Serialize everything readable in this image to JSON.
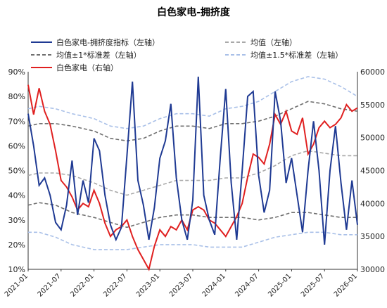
{
  "chart_data": {
    "type": "line",
    "title": "白色家电-拥挤度",
    "legend_position": "top",
    "grid": false,
    "x_ticks": [
      "2021-01",
      "2021-07",
      "2022-01",
      "2022-07",
      "2023-01",
      "2023-07",
      "2024-01",
      "2024-07",
      "2025-01",
      "2025-07",
      "2026-01"
    ],
    "x_range": [
      "2021-01",
      "2026-01"
    ],
    "y_left": {
      "min": 10,
      "max": 90,
      "step": 10,
      "unit": "%",
      "tick_labels": [
        "10%",
        "20%",
        "30%",
        "40%",
        "50%",
        "60%",
        "70%",
        "80%",
        "90%"
      ]
    },
    "y_right": {
      "min": 30000,
      "max": 60000,
      "step": 5000,
      "tick_labels": [
        "30000",
        "35000",
        "40000",
        "45000",
        "50000",
        "55000",
        "60000"
      ]
    },
    "series": [
      {
        "name": "白色家电-拥挤度指标（左轴）",
        "axis": "left",
        "color": "#1f3a93",
        "style": "solid",
        "points": [
          [
            "2021-01",
            73
          ],
          [
            "2021-02",
            60
          ],
          [
            "2021-03",
            44
          ],
          [
            "2021-04",
            47
          ],
          [
            "2021-05",
            40
          ],
          [
            "2021-06",
            29
          ],
          [
            "2021-07",
            26
          ],
          [
            "2021-08",
            36
          ],
          [
            "2021-09",
            54
          ],
          [
            "2021-10",
            32
          ],
          [
            "2021-11",
            46
          ],
          [
            "2021-12",
            37
          ],
          [
            "2022-01",
            63
          ],
          [
            "2022-02",
            58
          ],
          [
            "2022-03",
            40
          ],
          [
            "2022-04",
            28
          ],
          [
            "2022-05",
            22
          ],
          [
            "2022-06",
            27
          ],
          [
            "2022-07",
            56
          ],
          [
            "2022-08",
            86
          ],
          [
            "2022-09",
            46
          ],
          [
            "2022-10",
            36
          ],
          [
            "2022-11",
            22
          ],
          [
            "2022-12",
            35
          ],
          [
            "2023-01",
            55
          ],
          [
            "2023-02",
            62
          ],
          [
            "2023-03",
            77
          ],
          [
            "2023-04",
            47
          ],
          [
            "2023-05",
            30
          ],
          [
            "2023-06",
            22
          ],
          [
            "2023-07",
            38
          ],
          [
            "2023-08",
            88
          ],
          [
            "2023-09",
            40
          ],
          [
            "2023-10",
            30
          ],
          [
            "2023-11",
            24
          ],
          [
            "2023-12",
            55
          ],
          [
            "2024-01",
            83
          ],
          [
            "2024-02",
            45
          ],
          [
            "2024-03",
            22
          ],
          [
            "2024-04",
            50
          ],
          [
            "2024-05",
            80
          ],
          [
            "2024-06",
            82
          ],
          [
            "2024-07",
            48
          ],
          [
            "2024-08",
            33
          ],
          [
            "2024-09",
            42
          ],
          [
            "2024-10",
            82
          ],
          [
            "2024-11",
            70
          ],
          [
            "2024-12",
            45
          ],
          [
            "2025-01",
            55
          ],
          [
            "2025-02",
            40
          ],
          [
            "2025-03",
            25
          ],
          [
            "2025-04",
            50
          ],
          [
            "2025-05",
            70
          ],
          [
            "2025-06",
            50
          ],
          [
            "2025-07",
            20
          ],
          [
            "2025-08",
            50
          ],
          [
            "2025-09",
            68
          ],
          [
            "2025-10",
            45
          ],
          [
            "2025-11",
            26
          ],
          [
            "2025-12",
            46
          ],
          [
            "2026-01",
            28
          ]
        ]
      },
      {
        "name": "均值（左轴）",
        "axis": "left",
        "color": "#a9a9a9",
        "style": "dashed",
        "points": [
          [
            "2021-01",
            48
          ],
          [
            "2021-03",
            49
          ],
          [
            "2021-06",
            49
          ],
          [
            "2021-09",
            48
          ],
          [
            "2022-01",
            45
          ],
          [
            "2022-04",
            42
          ],
          [
            "2022-07",
            40
          ],
          [
            "2022-10",
            42
          ],
          [
            "2023-01",
            44
          ],
          [
            "2023-04",
            46
          ],
          [
            "2023-07",
            46
          ],
          [
            "2023-10",
            46
          ],
          [
            "2024-01",
            47
          ],
          [
            "2024-04",
            47
          ],
          [
            "2024-07",
            49
          ],
          [
            "2024-10",
            52
          ],
          [
            "2025-01",
            56
          ],
          [
            "2025-04",
            58
          ],
          [
            "2025-07",
            57
          ],
          [
            "2025-10",
            56
          ],
          [
            "2026-01",
            56
          ]
        ]
      },
      {
        "name": "均值±1*标准差（左轴）",
        "axis": "left",
        "color": "#707070",
        "style": "dashed",
        "bands": [
          [
            [
              "2021-01",
              68
            ],
            [
              "2021-03",
              69
            ],
            [
              "2021-06",
              69
            ],
            [
              "2021-09",
              68
            ],
            [
              "2022-01",
              66
            ],
            [
              "2022-04",
              63
            ],
            [
              "2022-07",
              62
            ],
            [
              "2022-10",
              63
            ],
            [
              "2023-01",
              66
            ],
            [
              "2023-04",
              68
            ],
            [
              "2023-07",
              68
            ],
            [
              "2023-10",
              67
            ],
            [
              "2024-01",
              69
            ],
            [
              "2024-04",
              69
            ],
            [
              "2024-07",
              70
            ],
            [
              "2024-10",
              72
            ],
            [
              "2025-01",
              75
            ],
            [
              "2025-04",
              78
            ],
            [
              "2025-07",
              77
            ],
            [
              "2025-10",
              75
            ],
            [
              "2026-01",
              74
            ]
          ],
          [
            [
              "2021-01",
              36
            ],
            [
              "2021-03",
              37
            ],
            [
              "2021-06",
              36
            ],
            [
              "2021-09",
              33
            ],
            [
              "2022-01",
              31
            ],
            [
              "2022-04",
              29
            ],
            [
              "2022-07",
              27
            ],
            [
              "2022-10",
              29
            ],
            [
              "2023-01",
              31
            ],
            [
              "2023-04",
              32
            ],
            [
              "2023-07",
              32
            ],
            [
              "2023-10",
              31
            ],
            [
              "2024-01",
              31
            ],
            [
              "2024-04",
              31
            ],
            [
              "2024-07",
              30
            ],
            [
              "2024-10",
              31
            ],
            [
              "2025-01",
              33
            ],
            [
              "2025-04",
              33
            ],
            [
              "2025-07",
              32
            ],
            [
              "2025-10",
              31
            ],
            [
              "2026-01",
              31
            ]
          ]
        ]
      },
      {
        "name": "均值±1.5*标准差（左轴）",
        "axis": "left",
        "color": "#a9c0e8",
        "style": "dashed",
        "bands": [
          [
            [
              "2021-01",
              75
            ],
            [
              "2021-03",
              76
            ],
            [
              "2021-06",
              75
            ],
            [
              "2021-09",
              73
            ],
            [
              "2022-01",
              71
            ],
            [
              "2022-04",
              68
            ],
            [
              "2022-07",
              67
            ],
            [
              "2022-10",
              68
            ],
            [
              "2023-01",
              71
            ],
            [
              "2023-04",
              73
            ],
            [
              "2023-07",
              73
            ],
            [
              "2023-10",
              72
            ],
            [
              "2024-01",
              75
            ],
            [
              "2024-04",
              76
            ],
            [
              "2024-07",
              78
            ],
            [
              "2024-10",
              82
            ],
            [
              "2025-01",
              86
            ],
            [
              "2025-04",
              88
            ],
            [
              "2025-07",
              87
            ],
            [
              "2025-10",
              84
            ],
            [
              "2026-01",
              80
            ]
          ],
          [
            [
              "2021-01",
              25
            ],
            [
              "2021-03",
              25
            ],
            [
              "2021-06",
              23
            ],
            [
              "2021-09",
              20
            ],
            [
              "2022-01",
              18
            ],
            [
              "2022-04",
              18
            ],
            [
              "2022-07",
              18
            ],
            [
              "2022-10",
              19
            ],
            [
              "2023-01",
              20
            ],
            [
              "2023-04",
              20
            ],
            [
              "2023-07",
              20
            ],
            [
              "2023-10",
              19
            ],
            [
              "2024-01",
              19
            ],
            [
              "2024-04",
              19
            ],
            [
              "2024-07",
              21
            ],
            [
              "2024-10",
              23
            ],
            [
              "2025-01",
              24
            ],
            [
              "2025-04",
              25
            ],
            [
              "2025-07",
              25
            ],
            [
              "2025-10",
              24
            ],
            [
              "2026-01",
              24
            ]
          ]
        ]
      },
      {
        "name": "白色家电（右轴）",
        "axis": "right",
        "color": "#e02020",
        "style": "solid",
        "points": [
          [
            "2021-01",
            58000
          ],
          [
            "2021-02",
            53500
          ],
          [
            "2021-03",
            57500
          ],
          [
            "2021-04",
            54000
          ],
          [
            "2021-05",
            52000
          ],
          [
            "2021-06",
            48000
          ],
          [
            "2021-07",
            43500
          ],
          [
            "2021-08",
            42500
          ],
          [
            "2021-09",
            41000
          ],
          [
            "2021-10",
            39000
          ],
          [
            "2021-11",
            40000
          ],
          [
            "2021-12",
            39500
          ],
          [
            "2022-01",
            42000
          ],
          [
            "2022-02",
            40000
          ],
          [
            "2022-03",
            37000
          ],
          [
            "2022-04",
            35000
          ],
          [
            "2022-05",
            36000
          ],
          [
            "2022-06",
            36500
          ],
          [
            "2022-07",
            37500
          ],
          [
            "2022-08",
            35000
          ],
          [
            "2022-09",
            33000
          ],
          [
            "2022-10",
            31500
          ],
          [
            "2022-11",
            30000
          ],
          [
            "2022-12",
            33500
          ],
          [
            "2023-01",
            36000
          ],
          [
            "2023-02",
            35000
          ],
          [
            "2023-03",
            36500
          ],
          [
            "2023-04",
            36000
          ],
          [
            "2023-05",
            37500
          ],
          [
            "2023-06",
            36000
          ],
          [
            "2023-07",
            39000
          ],
          [
            "2023-08",
            39500
          ],
          [
            "2023-09",
            39000
          ],
          [
            "2023-10",
            37500
          ],
          [
            "2023-11",
            37000
          ],
          [
            "2023-12",
            36000
          ],
          [
            "2024-01",
            35000
          ],
          [
            "2024-02",
            36500
          ],
          [
            "2024-03",
            38000
          ],
          [
            "2024-04",
            40000
          ],
          [
            "2024-05",
            44000
          ],
          [
            "2024-06",
            47500
          ],
          [
            "2024-07",
            47000
          ],
          [
            "2024-08",
            46000
          ],
          [
            "2024-09",
            49000
          ],
          [
            "2024-10",
            53500
          ],
          [
            "2024-11",
            52000
          ],
          [
            "2024-12",
            54000
          ],
          [
            "2025-01",
            51000
          ],
          [
            "2025-02",
            50500
          ],
          [
            "2025-03",
            53000
          ],
          [
            "2025-04",
            47500
          ],
          [
            "2025-05",
            49000
          ],
          [
            "2025-06",
            51500
          ],
          [
            "2025-07",
            52500
          ],
          [
            "2025-08",
            51500
          ],
          [
            "2025-09",
            52000
          ],
          [
            "2025-10",
            53000
          ],
          [
            "2025-11",
            55000
          ],
          [
            "2025-12",
            54000
          ],
          [
            "2026-01",
            54500
          ]
        ]
      }
    ]
  }
}
